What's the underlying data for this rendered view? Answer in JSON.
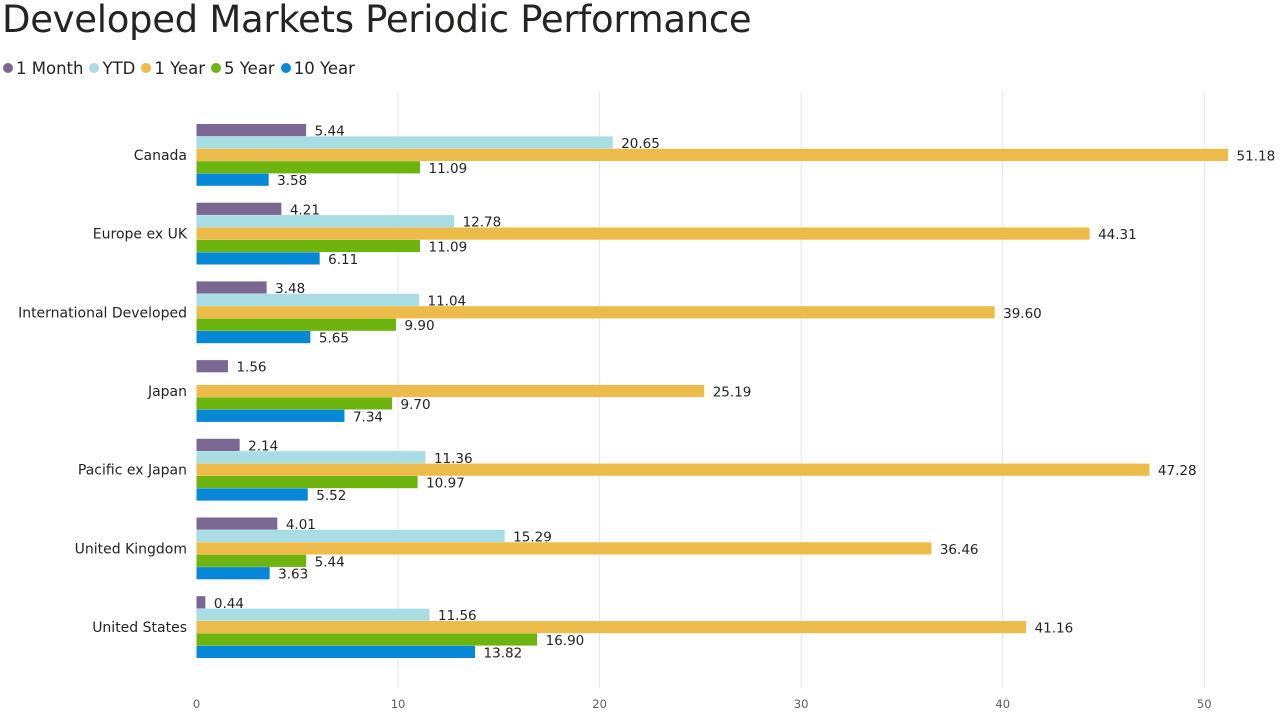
{
  "title": "Developed Markets Periodic Performance",
  "chart_data": {
    "type": "bar",
    "orientation": "horizontal",
    "title": "Developed Markets Periodic Performance",
    "xlabel": "",
    "ylabel": "",
    "categories": [
      "Canada",
      "Europe ex UK",
      "International Developed",
      "Japan",
      "Pacific ex Japan",
      "United Kingdom",
      "United States"
    ],
    "series": [
      {
        "name": "1 Month",
        "color": "#7b6892",
        "values": [
          5.44,
          4.21,
          3.48,
          1.56,
          2.14,
          4.01,
          0.44
        ]
      },
      {
        "name": "YTD",
        "color": "#a7dde3",
        "values": [
          20.65,
          12.78,
          11.04,
          null,
          11.36,
          15.29,
          11.56
        ]
      },
      {
        "name": "1 Year",
        "color": "#edbb49",
        "values": [
          51.18,
          44.31,
          39.6,
          25.19,
          47.28,
          36.46,
          41.16
        ]
      },
      {
        "name": "5 Year",
        "color": "#6db40f",
        "values": [
          11.09,
          11.09,
          9.9,
          9.7,
          10.97,
          5.44,
          16.9
        ]
      },
      {
        "name": "10 Year",
        "color": "#0788d6",
        "values": [
          3.58,
          6.11,
          5.65,
          7.34,
          5.52,
          3.63,
          13.82
        ]
      }
    ],
    "ticks": [
      "0",
      "10",
      "20",
      "30",
      "40",
      "50"
    ],
    "xlim": [
      0,
      52
    ],
    "grid": true,
    "legend_position": "top-left",
    "data_labels": true
  }
}
